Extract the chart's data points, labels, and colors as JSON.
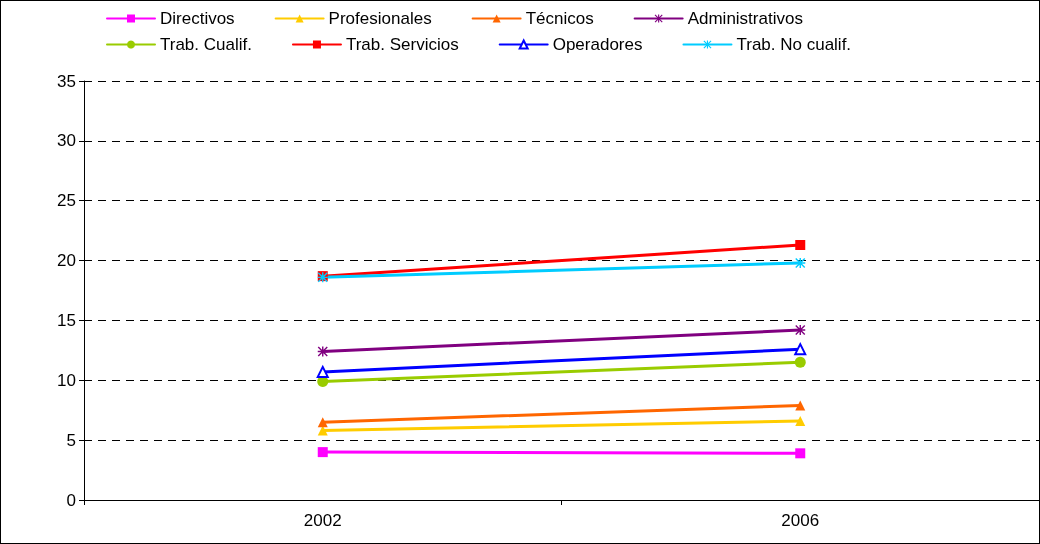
{
  "chart_data": {
    "type": "line",
    "categories": [
      "2002",
      "2006"
    ],
    "series": [
      {
        "name": "Directivos",
        "color": "#ff00ff",
        "marker": "square",
        "values": [
          4.0,
          3.9
        ]
      },
      {
        "name": "Profesionales",
        "color": "#ffcc00",
        "marker": "triangle",
        "values": [
          5.8,
          6.6
        ]
      },
      {
        "name": "Técnicos",
        "color": "#ff6600",
        "marker": "triangle",
        "values": [
          6.5,
          7.9
        ]
      },
      {
        "name": "Administrativos",
        "color": "#800080",
        "marker": "cross",
        "values": [
          12.4,
          14.2
        ]
      },
      {
        "name": "Trab. Cualif.",
        "color": "#99cc00",
        "marker": "circle",
        "values": [
          9.9,
          11.5
        ]
      },
      {
        "name": "Trab. Servicios",
        "color": "#ff0000",
        "marker": "square",
        "values": [
          18.7,
          21.3
        ]
      },
      {
        "name": "Operadores",
        "color": "#0000ff",
        "marker": "triangle",
        "values": [
          10.7,
          12.6
        ]
      },
      {
        "name": "Trab. No cualif.",
        "color": "#00ccff",
        "marker": "cross",
        "values": [
          18.6,
          19.8
        ]
      }
    ],
    "ylim": [
      0,
      35
    ],
    "yticks": [
      0,
      5,
      10,
      15,
      20,
      25,
      30,
      35
    ],
    "grid": "y",
    "legend": "top",
    "line_style": "solid"
  }
}
